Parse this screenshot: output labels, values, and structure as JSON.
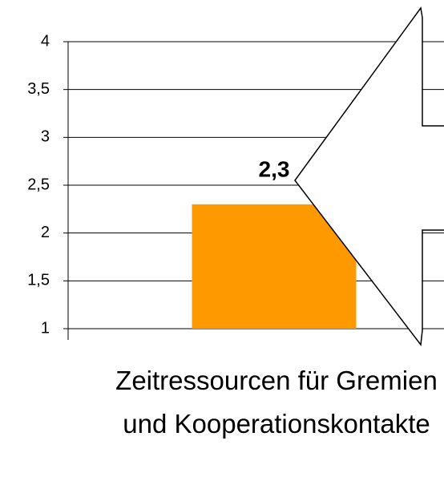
{
  "chart_data": {
    "type": "bar",
    "categories": [
      "Zeitressourcen für Gremien und Kooperationskontakte"
    ],
    "values": [
      2.3
    ],
    "value_labels": [
      "2,3"
    ],
    "color": "#ff9900",
    "ylim": [
      1,
      4
    ],
    "yticks": [
      1,
      {
        "value": 1.5,
        "label": "1,5"
      },
      2,
      {
        "value": 2.5,
        "label": "2,5"
      },
      3,
      {
        "value": 3.5,
        "label": "3,5"
      },
      4
    ],
    "grid": true
  }
}
